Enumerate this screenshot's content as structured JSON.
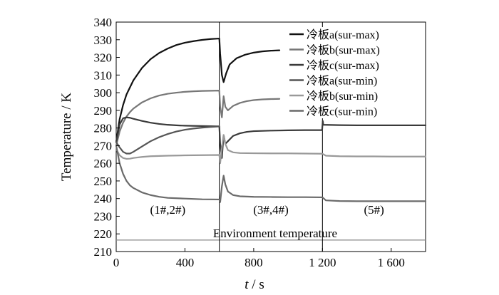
{
  "chart_data": {
    "type": "line",
    "xlabel_var": "t",
    "xlabel_unit": "/ s",
    "ylabel": "Temperature / K",
    "xlim": [
      0,
      1800
    ],
    "ylim": [
      210,
      340
    ],
    "x_ticks": [
      0,
      400,
      800,
      1200,
      1600
    ],
    "x_tick_labels": [
      "0",
      "400",
      "800",
      "1 200",
      "1 600"
    ],
    "y_ticks": [
      210,
      220,
      230,
      240,
      250,
      260,
      270,
      280,
      290,
      300,
      310,
      320,
      330,
      340
    ],
    "y_tick_labels": [
      "210",
      "220",
      "230",
      "240",
      "250",
      "260",
      "270",
      "280",
      "290",
      "300",
      "310",
      "320",
      "330",
      "340"
    ],
    "grid": false,
    "legend_position": "top-right",
    "phase_dividers": [
      600,
      1200
    ],
    "phase_labels": [
      {
        "text": "(1#,2#)",
        "x": 300,
        "y": 225
      },
      {
        "text": "(3#,4#)",
        "x": 900,
        "y": 225
      },
      {
        "text": "(5#)",
        "x": 1500,
        "y": 225
      }
    ],
    "environment": {
      "label": "Environment temperature",
      "value": 216.5,
      "color": "#8a8a8a"
    },
    "series": [
      {
        "name": "冷板a(sur-max)",
        "color": "#111111",
        "points": [
          [
            0,
            272
          ],
          [
            20,
            285
          ],
          [
            40,
            293
          ],
          [
            60,
            299
          ],
          [
            80,
            303
          ],
          [
            100,
            307
          ],
          [
            150,
            314
          ],
          [
            200,
            319
          ],
          [
            250,
            322.5
          ],
          [
            300,
            325
          ],
          [
            350,
            327
          ],
          [
            400,
            328.3
          ],
          [
            450,
            329.2
          ],
          [
            500,
            329.9
          ],
          [
            550,
            330.4
          ],
          [
            600,
            330.7
          ],
          [
            605,
            322
          ],
          [
            615,
            310
          ],
          [
            625,
            306
          ],
          [
            640,
            311
          ],
          [
            660,
            316
          ],
          [
            700,
            319.5
          ],
          [
            750,
            321.5
          ],
          [
            800,
            322.7
          ],
          [
            850,
            323.4
          ],
          [
            900,
            323.8
          ],
          [
            950,
            324
          ]
        ]
      },
      {
        "name": "冷板b(sur-max)",
        "color": "#777777",
        "points": [
          [
            0,
            270
          ],
          [
            20,
            278
          ],
          [
            40,
            283
          ],
          [
            60,
            286.5
          ],
          [
            80,
            289
          ],
          [
            100,
            291
          ],
          [
            150,
            294.5
          ],
          [
            200,
            296.8
          ],
          [
            250,
            298.4
          ],
          [
            300,
            299.4
          ],
          [
            350,
            300
          ],
          [
            400,
            300.5
          ],
          [
            450,
            300.8
          ],
          [
            500,
            301
          ],
          [
            550,
            301.1
          ],
          [
            600,
            301.2
          ],
          [
            605,
            292
          ],
          [
            615,
            286
          ],
          [
            625,
            298
          ],
          [
            635,
            292
          ],
          [
            650,
            290
          ],
          [
            680,
            292.5
          ],
          [
            720,
            294.2
          ],
          [
            760,
            295.2
          ],
          [
            800,
            295.8
          ],
          [
            850,
            296.2
          ],
          [
            900,
            296.4
          ],
          [
            950,
            296.5
          ]
        ]
      },
      {
        "name": "冷板c(sur-max)",
        "color": "#3a3a3a",
        "points": [
          [
            0,
            272
          ],
          [
            20,
            282
          ],
          [
            40,
            285.5
          ],
          [
            60,
            286
          ],
          [
            80,
            285.8
          ],
          [
            100,
            285.2
          ],
          [
            150,
            284
          ],
          [
            200,
            283
          ],
          [
            250,
            282.3
          ],
          [
            300,
            281.8
          ],
          [
            350,
            281.5
          ],
          [
            400,
            281.3
          ],
          [
            450,
            281.2
          ],
          [
            500,
            281.1
          ],
          [
            550,
            281
          ],
          [
            600,
            280.9
          ],
          [
            605,
            271
          ],
          [
            615,
            263
          ],
          [
            625,
            276
          ],
          [
            635,
            271
          ],
          [
            650,
            272.5
          ],
          [
            680,
            275.5
          ],
          [
            720,
            277
          ],
          [
            760,
            277.8
          ],
          [
            800,
            278.2
          ],
          [
            900,
            278.5
          ],
          [
            1000,
            278.7
          ],
          [
            1100,
            278.8
          ],
          [
            1190,
            278.8
          ],
          [
            1198,
            278.8
          ],
          [
            1202,
            284
          ],
          [
            1205,
            281.8
          ],
          [
            1300,
            281.6
          ],
          [
            1400,
            281.5
          ],
          [
            1500,
            281.5
          ],
          [
            1600,
            281.5
          ],
          [
            1700,
            281.5
          ],
          [
            1800,
            281.5
          ]
        ]
      },
      {
        "name": "冷板a(sur-min)",
        "color": "#555555",
        "points": [
          [
            0,
            272
          ],
          [
            20,
            269
          ],
          [
            40,
            266.5
          ],
          [
            60,
            265.5
          ],
          [
            80,
            265.5
          ],
          [
            100,
            266.5
          ],
          [
            150,
            269.5
          ],
          [
            200,
            272.5
          ],
          [
            250,
            274.8
          ],
          [
            300,
            276.6
          ],
          [
            350,
            278
          ],
          [
            400,
            279
          ],
          [
            450,
            279.7
          ],
          [
            500,
            280.2
          ],
          [
            550,
            280.6
          ],
          [
            600,
            280.9
          ]
        ]
      },
      {
        "name": "冷板b(sur-min)",
        "color": "#999999",
        "points": [
          [
            0,
            268
          ],
          [
            20,
            264.5
          ],
          [
            40,
            263
          ],
          [
            60,
            262.5
          ],
          [
            80,
            262.6
          ],
          [
            100,
            263
          ],
          [
            150,
            263.6
          ],
          [
            200,
            264
          ],
          [
            300,
            264.3
          ],
          [
            400,
            264.5
          ],
          [
            500,
            264.6
          ],
          [
            600,
            264.7
          ],
          [
            605,
            260
          ],
          [
            615,
            269
          ],
          [
            625,
            276
          ],
          [
            635,
            271
          ],
          [
            650,
            267.5
          ],
          [
            680,
            266.2
          ],
          [
            720,
            265.8
          ],
          [
            800,
            265.7
          ],
          [
            900,
            265.6
          ],
          [
            1000,
            265.6
          ],
          [
            1100,
            265.5
          ],
          [
            1200,
            265.4
          ],
          [
            1220,
            264.3
          ],
          [
            1300,
            264
          ],
          [
            1400,
            263.9
          ],
          [
            1500,
            263.9
          ],
          [
            1600,
            263.8
          ],
          [
            1700,
            263.8
          ],
          [
            1800,
            263.8
          ]
        ]
      },
      {
        "name": "冷板c(sur-min)",
        "color": "#6a6a6a",
        "points": [
          [
            0,
            270
          ],
          [
            20,
            260
          ],
          [
            40,
            254
          ],
          [
            60,
            250
          ],
          [
            80,
            247.5
          ],
          [
            100,
            246
          ],
          [
            150,
            243.5
          ],
          [
            200,
            242
          ],
          [
            250,
            241
          ],
          [
            300,
            240.4
          ],
          [
            400,
            240
          ],
          [
            500,
            239.6
          ],
          [
            600,
            239.5
          ],
          [
            605,
            238
          ],
          [
            615,
            247
          ],
          [
            625,
            253
          ],
          [
            635,
            248
          ],
          [
            650,
            244
          ],
          [
            680,
            242
          ],
          [
            720,
            241.3
          ],
          [
            800,
            241
          ],
          [
            900,
            240.9
          ],
          [
            1000,
            240.8
          ],
          [
            1100,
            240.8
          ],
          [
            1200,
            240.7
          ],
          [
            1220,
            239
          ],
          [
            1300,
            238.6
          ],
          [
            1400,
            238.5
          ],
          [
            1500,
            238.5
          ],
          [
            1600,
            238.5
          ],
          [
            1700,
            238.5
          ],
          [
            1800,
            238.5
          ]
        ]
      }
    ]
  }
}
